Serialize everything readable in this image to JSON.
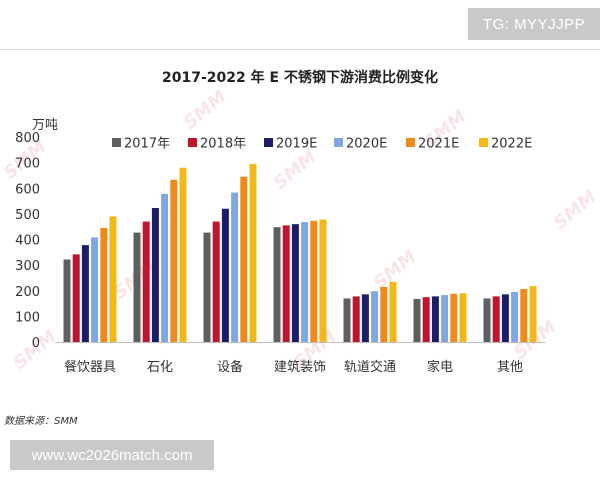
{
  "overlay": {
    "tg_text": "TG: MYYJJPP",
    "url_text": "www.wc2026match.com",
    "source_text": "数据来源：SMM",
    "watermark_text": "SMM"
  },
  "chart_data": {
    "type": "bar",
    "title": "2017-2022 年 E 不锈钢下游消费比例变化",
    "ylabel": "万吨",
    "xlabel": "",
    "ylim": [
      0,
      800
    ],
    "yticks": [
      0,
      100,
      200,
      300,
      400,
      500,
      600,
      700,
      800
    ],
    "grid": false,
    "legend_position": "top",
    "categories": [
      "餐饮器具",
      "石化",
      "设备",
      "建筑装饰",
      "轨道交通",
      "家电",
      "其他"
    ],
    "series": [
      {
        "name": "2017年",
        "color": "#5f5f5f",
        "values": [
          322,
          427,
          427,
          448,
          170,
          168,
          170
        ]
      },
      {
        "name": "2018年",
        "color": "#c0152f",
        "values": [
          342,
          470,
          470,
          455,
          178,
          175,
          178
        ]
      },
      {
        "name": "2019E",
        "color": "#1b1d6b",
        "values": [
          378,
          523,
          520,
          460,
          186,
          178,
          186
        ]
      },
      {
        "name": "2020E",
        "color": "#7fa7e0",
        "values": [
          408,
          578,
          583,
          468,
          198,
          183,
          195
        ]
      },
      {
        "name": "2021E",
        "color": "#f08a1c",
        "values": [
          445,
          633,
          645,
          473,
          215,
          188,
          207
        ]
      },
      {
        "name": "2022E",
        "color": "#f2b719",
        "values": [
          490,
          680,
          695,
          478,
          235,
          190,
          218
        ]
      }
    ]
  }
}
